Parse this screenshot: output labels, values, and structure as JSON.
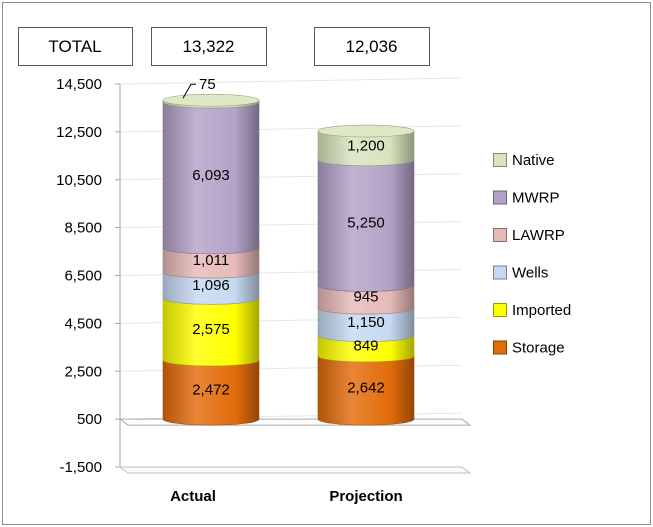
{
  "chart_data": {
    "type": "bar",
    "stacked": true,
    "style": "3d-cylinder",
    "categories": [
      "Actual",
      "Projection"
    ],
    "totals": {
      "label": "TOTAL",
      "values": [
        "13,322",
        "12,036"
      ]
    },
    "series": [
      {
        "name": "Storage",
        "color": "#E36C0A",
        "values": [
          2472,
          2642
        ],
        "labels": [
          "2,472",
          "2,642"
        ]
      },
      {
        "name": "Imported",
        "color": "#FFFF00",
        "values": [
          2575,
          849
        ],
        "labels": [
          "2,575",
          "849"
        ]
      },
      {
        "name": "Wells",
        "color": "#C6D9F1",
        "values": [
          1096,
          1150
        ],
        "labels": [
          "1,096",
          "1,150"
        ]
      },
      {
        "name": "LAWRP",
        "color": "#E6B9B8",
        "values": [
          1011,
          945
        ],
        "labels": [
          "1,011",
          "945"
        ]
      },
      {
        "name": "MWRP",
        "color": "#B3A2C7",
        "values": [
          6093,
          5250
        ],
        "labels": [
          "6,093",
          "5,250"
        ]
      },
      {
        "name": "Native",
        "color": "#D7E4BD",
        "values": [
          75,
          1200
        ],
        "labels": [
          "75",
          "1,200"
        ]
      }
    ],
    "y_axis": {
      "ticks": [
        -1500,
        500,
        2500,
        4500,
        6500,
        8500,
        10500,
        12500,
        14500
      ],
      "tick_labels": [
        "-1,500",
        "500",
        "2,500",
        "4,500",
        "6,500",
        "8,500",
        "10,500",
        "12,500",
        "14,500"
      ],
      "range": [
        -1500,
        14500
      ]
    },
    "grid": true,
    "legend": {
      "position": "right",
      "order": [
        "Native",
        "MWRP",
        "LAWRP",
        "Wells",
        "Imported",
        "Storage"
      ]
    }
  }
}
